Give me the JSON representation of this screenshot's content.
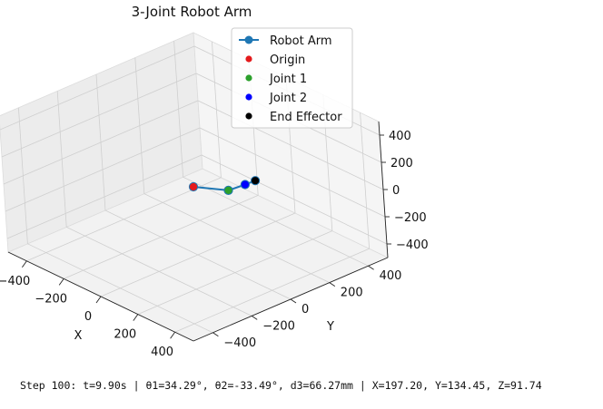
{
  "chart_data": {
    "type": "line3d",
    "title": "3-Joint Robot Arm",
    "xlabel": "X",
    "ylabel": "Y",
    "zlabel": "",
    "xlim": [
      -500,
      500
    ],
    "ylim": [
      -500,
      500
    ],
    "zlim": [
      -500,
      500
    ],
    "x_ticks": [
      "−400",
      "−200",
      "0",
      "200",
      "400"
    ],
    "y_ticks": [
      "−400",
      "−200",
      "0",
      "200",
      "400"
    ],
    "z_ticks": [
      "−400",
      "−200",
      "0",
      "200",
      "400"
    ],
    "grid": true,
    "legend_position": "top-right",
    "series": [
      {
        "name": "Robot Arm",
        "kind": "line",
        "color": "#1f77b4",
        "points": [
          [
            0,
            0,
            0
          ],
          [
            110,
            75,
            0
          ],
          [
            164,
            112,
            55
          ],
          [
            197.2,
            134.45,
            91.74
          ]
        ]
      },
      {
        "name": "Origin",
        "kind": "point",
        "color": "#e41a1c",
        "points": [
          [
            0,
            0,
            0
          ]
        ]
      },
      {
        "name": "Joint 1",
        "kind": "point",
        "color": "#2ca02c",
        "points": [
          [
            110,
            75,
            0
          ]
        ]
      },
      {
        "name": "Joint 2",
        "kind": "point",
        "color": "#0000ff",
        "points": [
          [
            164,
            112,
            55
          ]
        ]
      },
      {
        "name": "End Effector",
        "kind": "point",
        "color": "#000000",
        "points": [
          [
            197.2,
            134.45,
            91.74
          ]
        ]
      }
    ]
  },
  "status": {
    "text": "Step 100: t=9.90s | θ1=34.29°, θ2=-33.49°, d3=66.27mm | X=197.20, Y=134.45, Z=91.74"
  }
}
